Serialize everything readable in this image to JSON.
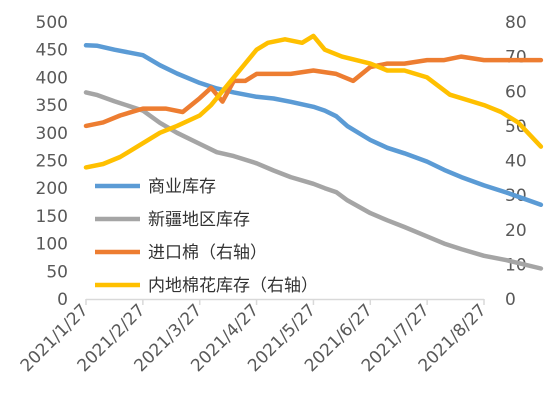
{
  "chart_data": {
    "type": "line",
    "title": "",
    "x": [
      "2021/1/27",
      "2021/2/27",
      "2021/3/27",
      "2021/4/27",
      "2021/5/27",
      "2021/6/27",
      "2021/7/27",
      "2021/8/27"
    ],
    "y_left": {
      "lim": [
        0,
        500
      ],
      "ticks": [
        0,
        50,
        100,
        150,
        200,
        250,
        300,
        350,
        400,
        450,
        500
      ]
    },
    "y_right": {
      "lim": [
        0,
        80
      ],
      "ticks": [
        0,
        10,
        20,
        30,
        40,
        50,
        60,
        70,
        80
      ]
    },
    "grid": false,
    "legend_position": "inside-left",
    "series": [
      {
        "name": "商业库存",
        "axis": "left",
        "color": "#5B9BD5",
        "x": [
          0,
          0.2,
          0.5,
          1,
          1.3,
          1.6,
          2,
          2.3,
          2.6,
          3,
          3.3,
          3.6,
          4,
          4.2,
          4.4,
          4.6,
          5,
          5.3,
          5.6,
          6,
          6.3,
          6.6,
          7,
          7.4,
          8
        ],
        "values": [
          458,
          457,
          450,
          440,
          422,
          407,
          390,
          380,
          373,
          365,
          362,
          356,
          347,
          340,
          330,
          312,
          287,
          273,
          263,
          248,
          233,
          220,
          205,
          192,
          170
        ]
      },
      {
        "name": "新疆地区库存",
        "axis": "left",
        "color": "#A5A5A5",
        "x": [
          0,
          0.2,
          0.5,
          1,
          1.3,
          1.6,
          2,
          2.3,
          2.6,
          3,
          3.3,
          3.6,
          4,
          4.2,
          4.4,
          4.6,
          5,
          5.3,
          5.6,
          6,
          6.3,
          6.6,
          7,
          7.4,
          8
        ],
        "values": [
          373,
          368,
          357,
          340,
          318,
          300,
          280,
          265,
          258,
          245,
          232,
          220,
          208,
          200,
          193,
          178,
          155,
          142,
          130,
          113,
          100,
          90,
          78,
          70,
          55
        ]
      },
      {
        "name": "进口棉（右轴）",
        "axis": "right",
        "color": "#ED7D31",
        "x": [
          0,
          0.3,
          0.6,
          1,
          1.4,
          1.7,
          2,
          2.2,
          2.4,
          2.6,
          2.8,
          3,
          3.2,
          3.6,
          4,
          4.4,
          4.7,
          5,
          5.3,
          5.6,
          6,
          6.3,
          6.6,
          7,
          7.5,
          8
        ],
        "values": [
          50,
          51,
          53,
          55,
          55,
          54,
          58,
          61,
          57,
          63,
          63,
          65,
          65,
          65,
          66,
          65,
          63,
          67,
          68,
          68,
          69,
          69,
          70,
          69,
          69,
          69
        ]
      },
      {
        "name": "内地棉花库存（右轴）",
        "axis": "right",
        "color": "#FFC000",
        "x": [
          0,
          0.3,
          0.6,
          1,
          1.3,
          1.6,
          2,
          2.2,
          2.5,
          2.8,
          3,
          3.2,
          3.5,
          3.8,
          4,
          4.2,
          4.5,
          5,
          5.3,
          5.6,
          6,
          6.4,
          6.8,
          7,
          7.3,
          7.6,
          8
        ],
        "values": [
          38,
          39,
          41,
          45,
          48,
          50,
          53,
          56,
          62,
          68,
          72,
          74,
          75,
          74,
          76,
          72,
          70,
          68,
          66,
          66,
          64,
          59,
          57,
          56,
          54,
          51,
          44
        ]
      }
    ]
  }
}
